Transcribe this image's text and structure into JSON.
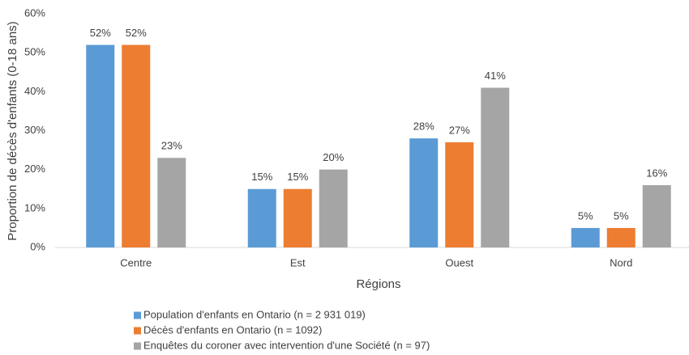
{
  "chart_data": {
    "type": "bar",
    "x_label": "Régions",
    "y_label": "Proportion de décès d'enfants (0-18 ans)",
    "categories": [
      "Centre",
      "Est",
      "Ouest",
      "Nord"
    ],
    "series": [
      {
        "name": "Population d'enfants en Ontario (n = 2 931 019)",
        "color": "#5b9bd5",
        "values": [
          52,
          15,
          28,
          5
        ],
        "value_labels": [
          "52%",
          "15%",
          "28%",
          "5%"
        ]
      },
      {
        "name": "Décès d'enfants en Ontario (n = 1092)",
        "color": "#ed7d31",
        "values": [
          52,
          15,
          27,
          5
        ],
        "value_labels": [
          "52%",
          "15%",
          "27%",
          "5%"
        ]
      },
      {
        "name": "Enquêtes du coroner avec intervention d'une Société (n = 97)",
        "color": "#a5a5a5",
        "values": [
          23,
          20,
          41,
          16
        ],
        "value_labels": [
          "23%",
          "20%",
          "41%",
          "16%"
        ]
      }
    ],
    "ylim": [
      0,
      60
    ],
    "yticks": [
      {
        "value": 0,
        "label": "0%"
      },
      {
        "value": 10,
        "label": "10%"
      },
      {
        "value": 20,
        "label": "20%"
      },
      {
        "value": 30,
        "label": "30%"
      },
      {
        "value": 40,
        "label": "40%"
      },
      {
        "value": 50,
        "label": "50%"
      },
      {
        "value": 60,
        "label": "60%"
      }
    ],
    "grid": false,
    "legend": "bottom"
  }
}
